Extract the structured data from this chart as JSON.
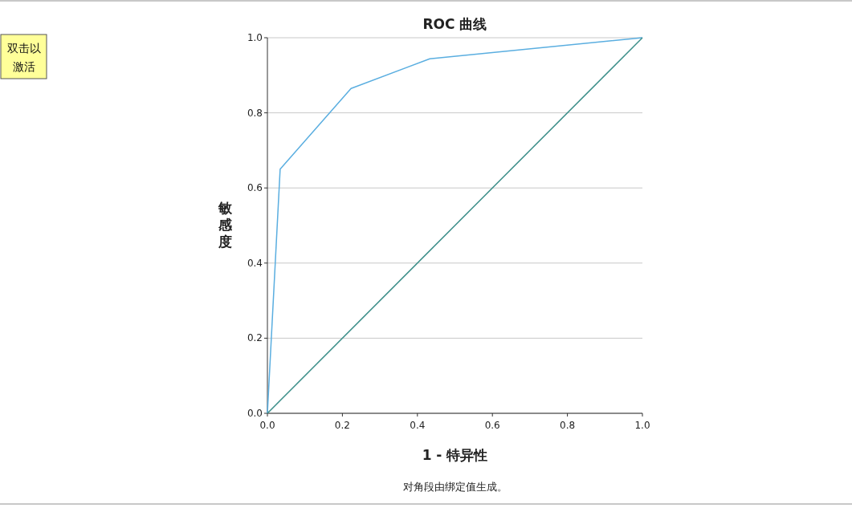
{
  "chart_data": {
    "type": "line",
    "title": "ROC 曲线",
    "xlabel": "1 - 特异性",
    "ylabel": "敏感度",
    "series": [
      {
        "color": "#5aaee0",
        "x": [
          0,
          0.034,
          0.223,
          0.433,
          1
        ],
        "values": [
          0,
          0.65,
          0.865,
          0.944,
          1
        ]
      },
      {
        "color": "#3d8f8a",
        "x": [
          0,
          1
        ],
        "values": [
          0,
          1
        ]
      }
    ],
    "xlim": [
      0,
      1
    ],
    "ylim": [
      0,
      1
    ],
    "xticks": [
      {
        "value": 0,
        "label": "0.0"
      },
      {
        "value": 0.2,
        "label": "0.2"
      },
      {
        "value": 0.4,
        "label": "0.4"
      },
      {
        "value": 0.6,
        "label": "0.6"
      },
      {
        "value": 0.8,
        "label": "0.8"
      },
      {
        "value": 1,
        "label": "1.0"
      }
    ],
    "yticks": [
      {
        "value": 0,
        "label": "0.0"
      },
      {
        "value": 0.2,
        "label": "0.2"
      },
      {
        "value": 0.4,
        "label": "0.4"
      },
      {
        "value": 0.6,
        "label": "0.6"
      },
      {
        "value": 0.8,
        "label": "0.8"
      },
      {
        "value": 1,
        "label": "1.0"
      }
    ],
    "grid": "y",
    "marker": "none",
    "line_style": "solid",
    "annotations": [
      "对角段由绑定值生成。",
      "双击以激活"
    ]
  }
}
